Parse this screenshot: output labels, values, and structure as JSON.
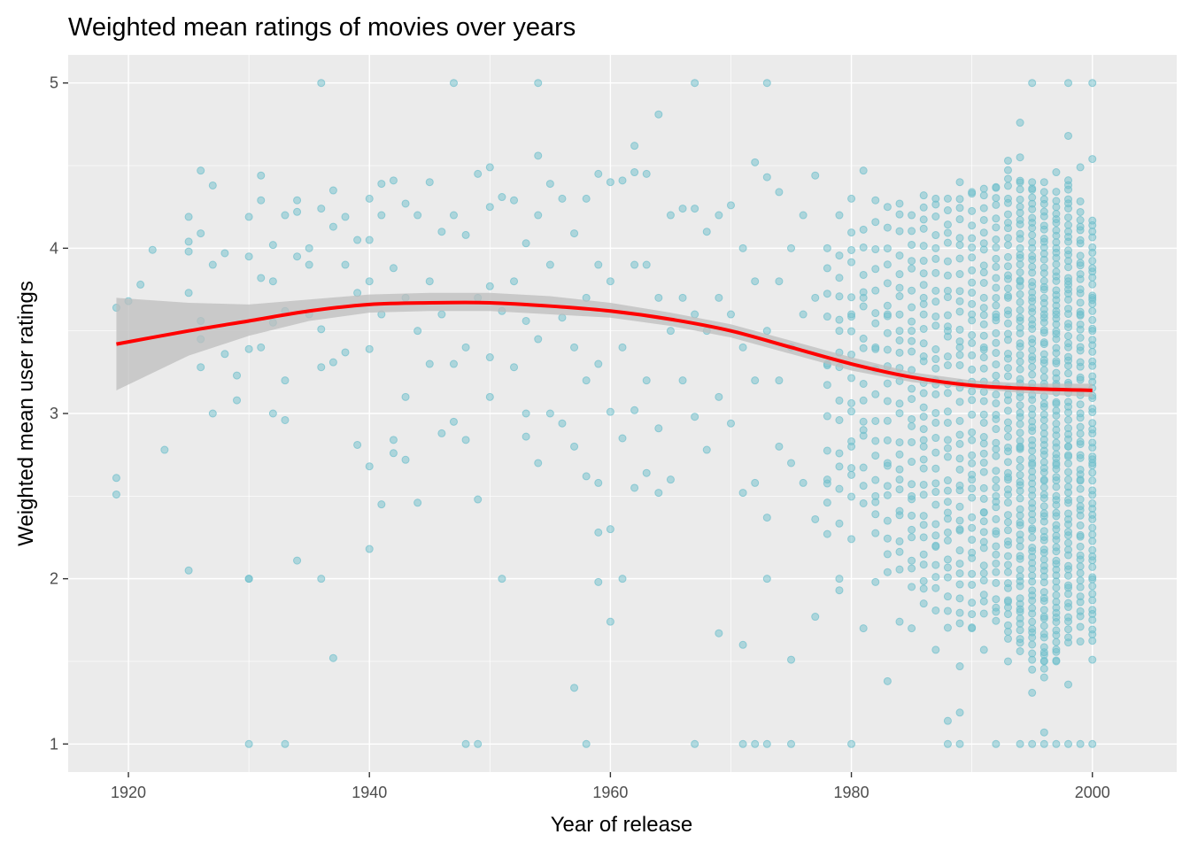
{
  "chart_data": {
    "type": "scatter",
    "title": "Weighted mean ratings of movies over years",
    "xlabel": "Year of release",
    "ylabel": "Weighted mean user ratings",
    "xlim": [
      1915,
      2007
    ],
    "ylim": [
      0.83,
      5.17
    ],
    "x_ticks": [
      1920,
      1940,
      1960,
      1980,
      2000
    ],
    "y_ticks": [
      1,
      2,
      3,
      4,
      5
    ],
    "x_tick_labels": [
      "1920",
      "1940",
      "1960",
      "1980",
      "2000"
    ],
    "y_tick_labels": [
      "1",
      "2",
      "3",
      "4",
      "5"
    ],
    "grid": true,
    "legend": "none",
    "colors": {
      "panel": "#ebebeb",
      "grid": "#ffffff",
      "points": "#6fbfcc",
      "smooth_line": "#ff0000",
      "confidence_band": "#bdbdbd"
    },
    "points": [
      [
        1919,
        3.64
      ],
      [
        1919,
        2.61
      ],
      [
        1919,
        2.51
      ],
      [
        1920,
        3.68
      ],
      [
        1921,
        3.78
      ],
      [
        1922,
        3.99
      ],
      [
        1923,
        2.78
      ],
      [
        1925,
        4.04
      ],
      [
        1925,
        4.19
      ],
      [
        1925,
        3.98
      ],
      [
        1925,
        3.73
      ],
      [
        1925,
        2.05
      ],
      [
        1926,
        4.47
      ],
      [
        1926,
        4.09
      ],
      [
        1926,
        3.56
      ],
      [
        1926,
        3.45
      ],
      [
        1926,
        3.28
      ],
      [
        1927,
        4.38
      ],
      [
        1927,
        3.9
      ],
      [
        1927,
        3.0
      ],
      [
        1928,
        3.97
      ],
      [
        1928,
        3.36
      ],
      [
        1929,
        3.23
      ],
      [
        1929,
        3.08
      ],
      [
        1930,
        4.19
      ],
      [
        1930,
        3.95
      ],
      [
        1930,
        3.39
      ],
      [
        1930,
        2.0
      ],
      [
        1930,
        2.0
      ],
      [
        1930,
        1.0
      ],
      [
        1931,
        4.44
      ],
      [
        1931,
        4.29
      ],
      [
        1931,
        3.82
      ],
      [
        1931,
        3.4
      ],
      [
        1932,
        4.02
      ],
      [
        1932,
        3.8
      ],
      [
        1932,
        3.55
      ],
      [
        1932,
        3.0
      ],
      [
        1933,
        4.2
      ],
      [
        1933,
        3.62
      ],
      [
        1933,
        3.2
      ],
      [
        1933,
        2.96
      ],
      [
        1933,
        1.0
      ],
      [
        1934,
        4.29
      ],
      [
        1934,
        4.22
      ],
      [
        1934,
        3.95
      ],
      [
        1934,
        2.11
      ],
      [
        1935,
        4.0
      ],
      [
        1935,
        3.9
      ],
      [
        1935,
        3.6
      ],
      [
        1936,
        5.0
      ],
      [
        1936,
        4.24
      ],
      [
        1936,
        3.51
      ],
      [
        1936,
        3.28
      ],
      [
        1936,
        2.0
      ],
      [
        1937,
        4.35
      ],
      [
        1937,
        4.13
      ],
      [
        1937,
        3.31
      ],
      [
        1937,
        1.52
      ],
      [
        1938,
        4.19
      ],
      [
        1938,
        3.9
      ],
      [
        1938,
        3.37
      ],
      [
        1939,
        4.05
      ],
      [
        1939,
        3.73
      ],
      [
        1939,
        2.81
      ],
      [
        1940,
        4.3
      ],
      [
        1940,
        4.05
      ],
      [
        1940,
        3.8
      ],
      [
        1940,
        3.39
      ],
      [
        1940,
        2.68
      ],
      [
        1940,
        2.18
      ],
      [
        1941,
        4.39
      ],
      [
        1941,
        4.2
      ],
      [
        1941,
        3.6
      ],
      [
        1941,
        2.45
      ],
      [
        1942,
        4.41
      ],
      [
        1942,
        3.88
      ],
      [
        1942,
        2.84
      ],
      [
        1942,
        2.76
      ],
      [
        1943,
        4.27
      ],
      [
        1943,
        3.7
      ],
      [
        1943,
        3.1
      ],
      [
        1943,
        2.72
      ],
      [
        1944,
        4.2
      ],
      [
        1944,
        3.5
      ],
      [
        1944,
        2.46
      ],
      [
        1945,
        4.4
      ],
      [
        1945,
        3.8
      ],
      [
        1945,
        3.3
      ],
      [
        1946,
        4.1
      ],
      [
        1946,
        3.6
      ],
      [
        1946,
        2.88
      ],
      [
        1947,
        5.0
      ],
      [
        1947,
        4.2
      ],
      [
        1947,
        3.3
      ],
      [
        1947,
        2.95
      ],
      [
        1948,
        4.08
      ],
      [
        1948,
        3.4
      ],
      [
        1948,
        2.84
      ],
      [
        1948,
        1.0
      ],
      [
        1949,
        4.45
      ],
      [
        1949,
        3.7
      ],
      [
        1949,
        2.48
      ],
      [
        1949,
        1.0
      ],
      [
        1950,
        4.49
      ],
      [
        1950,
        4.25
      ],
      [
        1950,
        3.77
      ],
      [
        1950,
        3.34
      ],
      [
        1950,
        3.1
      ],
      [
        1951,
        4.31
      ],
      [
        1951,
        3.62
      ],
      [
        1951,
        2.0
      ],
      [
        1952,
        4.29
      ],
      [
        1952,
        3.8
      ],
      [
        1952,
        3.28
      ],
      [
        1953,
        4.03
      ],
      [
        1953,
        3.56
      ],
      [
        1953,
        3.0
      ],
      [
        1953,
        2.86
      ],
      [
        1954,
        5.0
      ],
      [
        1954,
        4.56
      ],
      [
        1954,
        4.2
      ],
      [
        1954,
        3.45
      ],
      [
        1954,
        2.7
      ],
      [
        1955,
        4.39
      ],
      [
        1955,
        3.9
      ],
      [
        1955,
        3.0
      ],
      [
        1956,
        4.3
      ],
      [
        1956,
        3.58
      ],
      [
        1956,
        2.94
      ],
      [
        1957,
        4.09
      ],
      [
        1957,
        3.4
      ],
      [
        1957,
        2.8
      ],
      [
        1957,
        1.34
      ],
      [
        1958,
        4.3
      ],
      [
        1958,
        3.7
      ],
      [
        1958,
        3.2
      ],
      [
        1958,
        2.62
      ],
      [
        1958,
        1.0
      ],
      [
        1959,
        4.45
      ],
      [
        1959,
        3.9
      ],
      [
        1959,
        3.3
      ],
      [
        1959,
        2.58
      ],
      [
        1959,
        2.28
      ],
      [
        1959,
        1.98
      ],
      [
        1960,
        4.4
      ],
      [
        1960,
        3.8
      ],
      [
        1960,
        3.01
      ],
      [
        1960,
        2.3
      ],
      [
        1960,
        1.74
      ],
      [
        1961,
        4.41
      ],
      [
        1961,
        3.4
      ],
      [
        1961,
        2.85
      ],
      [
        1961,
        2.0
      ],
      [
        1962,
        4.62
      ],
      [
        1962,
        4.46
      ],
      [
        1962,
        3.9
      ],
      [
        1962,
        3.02
      ],
      [
        1962,
        2.55
      ],
      [
        1963,
        4.45
      ],
      [
        1963,
        3.9
      ],
      [
        1963,
        3.2
      ],
      [
        1963,
        2.64
      ],
      [
        1964,
        4.81
      ],
      [
        1964,
        3.7
      ],
      [
        1964,
        2.91
      ],
      [
        1964,
        2.52
      ],
      [
        1965,
        4.2
      ],
      [
        1965,
        3.5
      ],
      [
        1965,
        2.6
      ],
      [
        1966,
        4.24
      ],
      [
        1966,
        3.7
      ],
      [
        1966,
        3.2
      ],
      [
        1967,
        5.0
      ],
      [
        1967,
        4.24
      ],
      [
        1967,
        3.6
      ],
      [
        1967,
        2.98
      ],
      [
        1967,
        1.0
      ],
      [
        1968,
        4.1
      ],
      [
        1968,
        3.5
      ],
      [
        1968,
        2.78
      ],
      [
        1969,
        4.2
      ],
      [
        1969,
        3.7
      ],
      [
        1969,
        3.1
      ],
      [
        1969,
        1.67
      ],
      [
        1970,
        4.26
      ],
      [
        1970,
        3.6
      ],
      [
        1970,
        2.94
      ],
      [
        1971,
        4.0
      ],
      [
        1971,
        3.4
      ],
      [
        1971,
        2.52
      ],
      [
        1971,
        1.6
      ],
      [
        1971,
        1.0
      ],
      [
        1972,
        4.52
      ],
      [
        1972,
        3.8
      ],
      [
        1972,
        3.2
      ],
      [
        1972,
        2.58
      ],
      [
        1972,
        1.0
      ],
      [
        1973,
        5.0
      ],
      [
        1973,
        4.43
      ],
      [
        1973,
        3.5
      ],
      [
        1973,
        2.37
      ],
      [
        1973,
        2.0
      ],
      [
        1973,
        1.0
      ],
      [
        1974,
        4.34
      ],
      [
        1974,
        3.8
      ],
      [
        1974,
        3.2
      ],
      [
        1974,
        2.8
      ],
      [
        1975,
        4.0
      ],
      [
        1975,
        3.4
      ],
      [
        1975,
        2.7
      ],
      [
        1975,
        1.51
      ],
      [
        1975,
        1.0
      ],
      [
        1976,
        4.2
      ],
      [
        1976,
        3.6
      ],
      [
        1976,
        2.58
      ],
      [
        1977,
        4.44
      ],
      [
        1977,
        3.7
      ],
      [
        1977,
        2.36
      ],
      [
        1977,
        1.77
      ],
      [
        1978,
        4.0
      ],
      [
        1978,
        3.3
      ],
      [
        1978,
        2.6
      ],
      [
        1979,
        4.2
      ],
      [
        1979,
        3.5
      ],
      [
        1979,
        2.0
      ],
      [
        1979,
        1.93
      ],
      [
        1980,
        4.3
      ],
      [
        1980,
        3.6
      ],
      [
        1980,
        2.8
      ],
      [
        1980,
        2.24
      ],
      [
        1980,
        1.0
      ],
      [
        1981,
        4.47
      ],
      [
        1981,
        3.7
      ],
      [
        1981,
        2.9
      ],
      [
        1981,
        1.7
      ],
      [
        1982,
        4.29
      ],
      [
        1982,
        3.4
      ],
      [
        1982,
        2.5
      ],
      [
        1982,
        1.98
      ],
      [
        1983,
        4.25
      ],
      [
        1983,
        3.6
      ],
      [
        1983,
        2.7
      ],
      [
        1983,
        1.38
      ],
      [
        1984,
        4.27
      ],
      [
        1984,
        3.5
      ],
      [
        1984,
        2.6
      ],
      [
        1984,
        1.74
      ],
      [
        1985,
        4.2
      ],
      [
        1985,
        3.5
      ],
      [
        1985,
        2.5
      ],
      [
        1985,
        1.7
      ],
      [
        1986,
        4.32
      ],
      [
        1986,
        3.7
      ],
      [
        1986,
        2.8
      ],
      [
        1986,
        1.85
      ],
      [
        1987,
        4.3
      ],
      [
        1987,
        3.2
      ],
      [
        1987,
        2.2
      ],
      [
        1987,
        1.57
      ],
      [
        1988,
        4.3
      ],
      [
        1988,
        3.5
      ],
      [
        1988,
        2.4
      ],
      [
        1988,
        1.14
      ],
      [
        1988,
        1.0
      ],
      [
        1989,
        4.4
      ],
      [
        1989,
        3.4
      ],
      [
        1989,
        2.3
      ],
      [
        1989,
        1.47
      ],
      [
        1989,
        1.19
      ],
      [
        1989,
        1.0
      ],
      [
        1990,
        4.34
      ],
      [
        1990,
        3.6
      ],
      [
        1990,
        2.6
      ],
      [
        1990,
        1.7
      ],
      [
        1991,
        4.36
      ],
      [
        1991,
        3.4
      ],
      [
        1991,
        2.4
      ],
      [
        1991,
        1.57
      ],
      [
        1992,
        4.37
      ],
      [
        1992,
        3.6
      ],
      [
        1992,
        2.5
      ],
      [
        1992,
        1.0
      ],
      [
        1993,
        4.53
      ],
      [
        1993,
        3.7
      ],
      [
        1993,
        2.6
      ],
      [
        1993,
        1.86
      ],
      [
        1993,
        1.5
      ],
      [
        1994,
        4.76
      ],
      [
        1994,
        4.55
      ],
      [
        1994,
        3.8
      ],
      [
        1994,
        2.8
      ],
      [
        1994,
        1.8
      ],
      [
        1994,
        1.0
      ],
      [
        1995,
        5.0
      ],
      [
        1995,
        4.4
      ],
      [
        1995,
        3.7
      ],
      [
        1995,
        2.7
      ],
      [
        1995,
        1.45
      ],
      [
        1995,
        1.31
      ],
      [
        1995,
        1.0
      ],
      [
        1996,
        4.4
      ],
      [
        1996,
        3.6
      ],
      [
        1996,
        2.6
      ],
      [
        1996,
        1.5
      ],
      [
        1996,
        1.07
      ],
      [
        1996,
        1.0
      ],
      [
        1997,
        4.46
      ],
      [
        1997,
        3.6
      ],
      [
        1997,
        2.7
      ],
      [
        1997,
        1.5
      ],
      [
        1997,
        1.0
      ],
      [
        1998,
        5.0
      ],
      [
        1998,
        4.68
      ],
      [
        1998,
        3.8
      ],
      [
        1998,
        2.8
      ],
      [
        1998,
        1.36
      ],
      [
        1998,
        1.0
      ],
      [
        1999,
        4.49
      ],
      [
        1999,
        3.6
      ],
      [
        1999,
        2.6
      ],
      [
        1999,
        1.62
      ],
      [
        1999,
        1.0
      ],
      [
        2000,
        5.0
      ],
      [
        2000,
        4.54
      ],
      [
        2000,
        3.7
      ],
      [
        2000,
        2.7
      ],
      [
        2000,
        1.51
      ],
      [
        2000,
        1.0
      ]
    ],
    "dense_columns": [
      {
        "x": 1978,
        "ymin": 2.2,
        "ymax": 4.0,
        "n": 10
      },
      {
        "x": 1979,
        "ymin": 2.3,
        "ymax": 4.1,
        "n": 12
      },
      {
        "x": 1980,
        "ymin": 2.4,
        "ymax": 4.2,
        "n": 14
      },
      {
        "x": 1981,
        "ymin": 2.4,
        "ymax": 4.2,
        "n": 14
      },
      {
        "x": 1982,
        "ymin": 2.2,
        "ymax": 4.2,
        "n": 16
      },
      {
        "x": 1983,
        "ymin": 2.0,
        "ymax": 4.2,
        "n": 20
      },
      {
        "x": 1984,
        "ymin": 2.0,
        "ymax": 4.25,
        "n": 22
      },
      {
        "x": 1985,
        "ymin": 1.9,
        "ymax": 4.2,
        "n": 24
      },
      {
        "x": 1986,
        "ymin": 1.9,
        "ymax": 4.3,
        "n": 30
      },
      {
        "x": 1987,
        "ymin": 1.8,
        "ymax": 4.3,
        "n": 30
      },
      {
        "x": 1988,
        "ymin": 1.7,
        "ymax": 4.3,
        "n": 32
      },
      {
        "x": 1989,
        "ymin": 1.7,
        "ymax": 4.35,
        "n": 34
      },
      {
        "x": 1990,
        "ymin": 1.7,
        "ymax": 4.35,
        "n": 36
      },
      {
        "x": 1991,
        "ymin": 1.75,
        "ymax": 4.35,
        "n": 40
      },
      {
        "x": 1992,
        "ymin": 1.7,
        "ymax": 4.4,
        "n": 46
      },
      {
        "x": 1993,
        "ymin": 1.6,
        "ymax": 4.5,
        "n": 56
      },
      {
        "x": 1994,
        "ymin": 1.55,
        "ymax": 4.45,
        "n": 70
      },
      {
        "x": 1995,
        "ymin": 1.5,
        "ymax": 4.4,
        "n": 76
      },
      {
        "x": 1996,
        "ymin": 1.4,
        "ymax": 4.35,
        "n": 80
      },
      {
        "x": 1997,
        "ymin": 1.5,
        "ymax": 4.35,
        "n": 80
      },
      {
        "x": 1998,
        "ymin": 1.6,
        "ymax": 4.45,
        "n": 72
      },
      {
        "x": 1999,
        "ymin": 1.7,
        "ymax": 4.3,
        "n": 60
      },
      {
        "x": 2000,
        "ymin": 1.6,
        "ymax": 4.2,
        "n": 64
      }
    ],
    "smooth_line": [
      [
        1919,
        3.42
      ],
      [
        1925,
        3.5
      ],
      [
        1930,
        3.56
      ],
      [
        1935,
        3.62
      ],
      [
        1940,
        3.66
      ],
      [
        1945,
        3.67
      ],
      [
        1950,
        3.67
      ],
      [
        1955,
        3.65
      ],
      [
        1960,
        3.62
      ],
      [
        1965,
        3.57
      ],
      [
        1970,
        3.5
      ],
      [
        1975,
        3.4
      ],
      [
        1980,
        3.3
      ],
      [
        1985,
        3.22
      ],
      [
        1990,
        3.17
      ],
      [
        1995,
        3.15
      ],
      [
        2000,
        3.14
      ]
    ],
    "confidence_band": [
      [
        1919,
        3.14,
        3.7
      ],
      [
        1925,
        3.35,
        3.67
      ],
      [
        1930,
        3.47,
        3.66
      ],
      [
        1935,
        3.56,
        3.69
      ],
      [
        1940,
        3.61,
        3.72
      ],
      [
        1945,
        3.62,
        3.73
      ],
      [
        1950,
        3.62,
        3.73
      ],
      [
        1955,
        3.6,
        3.71
      ],
      [
        1960,
        3.58,
        3.67
      ],
      [
        1965,
        3.53,
        3.61
      ],
      [
        1970,
        3.46,
        3.54
      ],
      [
        1975,
        3.36,
        3.44
      ],
      [
        1980,
        3.26,
        3.34
      ],
      [
        1985,
        3.19,
        3.25
      ],
      [
        1990,
        3.15,
        3.2
      ],
      [
        1995,
        3.12,
        3.18
      ],
      [
        2000,
        3.1,
        3.18
      ]
    ]
  }
}
